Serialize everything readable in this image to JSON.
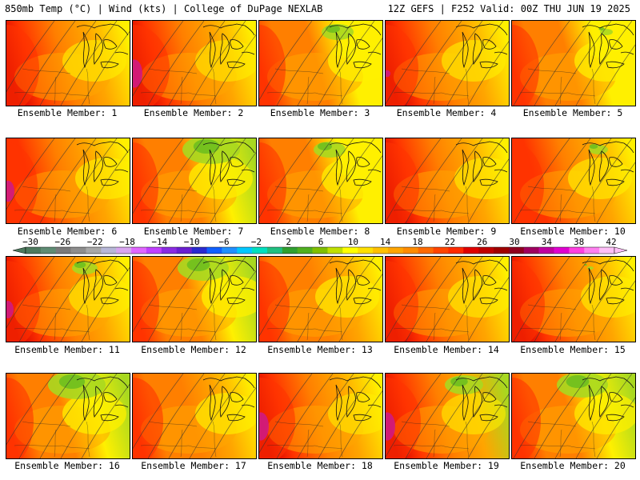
{
  "header": {
    "left_title": "850mb Temp (°C) | Wind (kts) | College of DuPage NEXLAB",
    "right_title": "12Z GEFS | F252 Valid: 00Z THU JUN 19 2025"
  },
  "caption_prefix": "Ensemble Member:",
  "members": [
    {
      "label": "Ensemble Member: 1",
      "warmth": 0.55,
      "pink": 0.0,
      "green": 0.0
    },
    {
      "label": "Ensemble Member: 2",
      "warmth": 0.8,
      "pink": 0.8,
      "green": 0.0
    },
    {
      "label": "Ensemble Member: 3",
      "warmth": 0.15,
      "pink": 0.0,
      "green": 0.5
    },
    {
      "label": "Ensemble Member: 4",
      "warmth": 0.55,
      "pink": 0.2,
      "green": 0.0
    },
    {
      "label": "Ensemble Member: 5",
      "warmth": 0.2,
      "pink": 0.0,
      "green": 0.2
    },
    {
      "label": "Ensemble Member: 6",
      "warmth": 0.45,
      "pink": 0.6,
      "green": 0.0
    },
    {
      "label": "Ensemble Member: 7",
      "warmth": 0.1,
      "pink": 0.0,
      "green": 0.9
    },
    {
      "label": "Ensemble Member: 8",
      "warmth": 0.2,
      "pink": 0.0,
      "green": 0.5
    },
    {
      "label": "Ensemble Member: 9",
      "warmth": 0.6,
      "pink": 0.0,
      "green": 0.0
    },
    {
      "label": "Ensemble Member: 10",
      "warmth": 0.5,
      "pink": 0.0,
      "green": 0.3
    },
    {
      "label": "Ensemble Member: 11",
      "warmth": 0.6,
      "pink": 0.5,
      "green": 0.4
    },
    {
      "label": "Ensemble Member: 12",
      "warmth": 0.15,
      "pink": 0.0,
      "green": 0.8
    },
    {
      "label": "Ensemble Member: 13",
      "warmth": 0.4,
      "pink": 0.0,
      "green": 0.0
    },
    {
      "label": "Ensemble Member: 14",
      "warmth": 0.55,
      "pink": 0.0,
      "green": 0.0
    },
    {
      "label": "Ensemble Member: 15",
      "warmth": 0.55,
      "pink": 0.0,
      "green": 0.1
    },
    {
      "label": "Ensemble Member: 16",
      "warmth": 0.2,
      "pink": 0.0,
      "green": 0.9
    },
    {
      "label": "Ensemble Member: 17",
      "warmth": 0.4,
      "pink": 0.0,
      "green": 0.0
    },
    {
      "label": "Ensemble Member: 18",
      "warmth": 0.75,
      "pink": 0.8,
      "green": 0.0
    },
    {
      "label": "Ensemble Member: 19",
      "warmth": 0.7,
      "pink": 0.8,
      "green": 0.6
    },
    {
      "label": "Ensemble Member: 20",
      "warmth": 0.3,
      "pink": 0.0,
      "green": 0.8
    }
  ],
  "colorbar": {
    "labels": [
      "−30",
      "−26",
      "−22",
      "−18",
      "−14",
      "−10",
      "−6",
      "−2",
      "2",
      "6",
      "10",
      "14",
      "18",
      "22",
      "26",
      "30",
      "34",
      "38",
      "42"
    ],
    "colors": [
      "#4d7a5e",
      "#5e8c74",
      "#7a7a7a",
      "#8e8e8e",
      "#a8a8a8",
      "#b8b8d8",
      "#d9a6f0",
      "#e066ff",
      "#c040ff",
      "#8a2be2",
      "#6a1fd0",
      "#2a2ad0",
      "#1060ff",
      "#2090ff",
      "#00c8ff",
      "#00e0c0",
      "#20c080",
      "#30a030",
      "#50b020",
      "#80c000",
      "#c0e000",
      "#ffff00",
      "#ffe000",
      "#ffc000",
      "#ffa500",
      "#ff8c00",
      "#ff6a00",
      "#ff4500",
      "#ff2a00",
      "#e00000",
      "#c00000",
      "#a00000",
      "#900020",
      "#a00060",
      "#c000a0",
      "#e000d0",
      "#ff40e0",
      "#ff80f0",
      "#ffc0f8"
    ]
  },
  "temperature_colors": {
    "green_dark": "#6fbf1f",
    "green": "#a8d820",
    "yellow": "#fff000",
    "orange": "#ffa500",
    "dark_orange": "#ff7f00",
    "red": "#ff3300",
    "dark_red": "#d40000",
    "magenta": "#cc1a8a"
  }
}
